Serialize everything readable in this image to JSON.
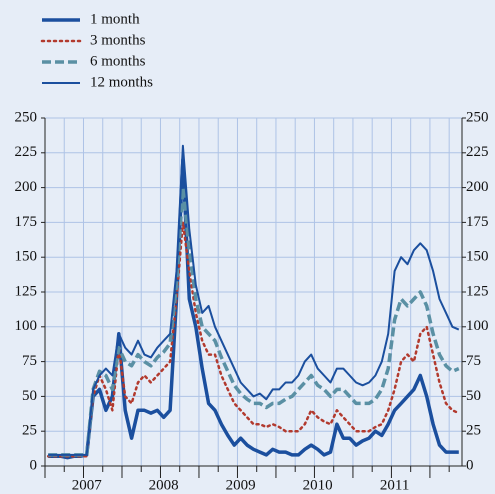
{
  "chart_data": {
    "type": "line",
    "categories": [
      null,
      null,
      null,
      null,
      null,
      null,
      "2007",
      null,
      null,
      null,
      null,
      null,
      null,
      null,
      null,
      null,
      null,
      null,
      "2008",
      null,
      null,
      null,
      null,
      null,
      null,
      null,
      null,
      null,
      null,
      null,
      "2009",
      null,
      null,
      null,
      null,
      null,
      null,
      null,
      null,
      null,
      null,
      null,
      "2010",
      null,
      null,
      null,
      null,
      null,
      null,
      null,
      null,
      null,
      null,
      null,
      "2011",
      null,
      null,
      null,
      null,
      null,
      null,
      null,
      null,
      null,
      null
    ],
    "series": [
      {
        "name": "1 month",
        "color": "#1b4f9e",
        "style": "solid",
        "width": 3.5,
        "values": [
          7,
          7,
          7,
          6,
          7,
          7,
          8,
          50,
          55,
          40,
          50,
          95,
          40,
          20,
          40,
          40,
          38,
          40,
          35,
          40,
          120,
          220,
          120,
          100,
          70,
          45,
          40,
          30,
          22,
          15,
          20,
          15,
          12,
          10,
          8,
          12,
          10,
          10,
          8,
          8,
          12,
          15,
          12,
          8,
          10,
          30,
          20,
          20,
          15,
          18,
          20,
          25,
          22,
          30,
          40,
          45,
          50,
          55,
          65,
          50,
          30,
          15,
          10,
          10,
          10
        ]
      },
      {
        "name": "3 months",
        "color": "#b23a2e",
        "style": "dotted",
        "width": 2.5,
        "values": [
          7,
          7,
          7,
          7,
          7,
          7,
          7,
          50,
          65,
          55,
          40,
          85,
          50,
          45,
          60,
          65,
          60,
          65,
          70,
          75,
          120,
          175,
          140,
          110,
          90,
          80,
          80,
          65,
          55,
          45,
          40,
          35,
          30,
          30,
          28,
          30,
          28,
          25,
          25,
          25,
          30,
          40,
          35,
          32,
          30,
          40,
          35,
          30,
          25,
          25,
          25,
          28,
          30,
          40,
          55,
          75,
          80,
          75,
          95,
          100,
          80,
          60,
          45,
          40,
          38
        ]
      },
      {
        "name": "6 months",
        "color": "#5a90a4",
        "style": "dashed",
        "width": 3.5,
        "values": [
          8,
          8,
          8,
          8,
          8,
          8,
          8,
          55,
          68,
          65,
          55,
          85,
          75,
          72,
          80,
          75,
          72,
          78,
          82,
          88,
          130,
          200,
          155,
          120,
          100,
          95,
          90,
          78,
          68,
          58,
          52,
          48,
          45,
          45,
          42,
          45,
          45,
          48,
          50,
          55,
          60,
          65,
          58,
          55,
          50,
          55,
          55,
          50,
          45,
          45,
          45,
          48,
          55,
          70,
          105,
          120,
          115,
          120,
          125,
          115,
          95,
          80,
          72,
          68,
          70
        ]
      },
      {
        "name": "12 months",
        "color": "#1b4f9e",
        "style": "solid",
        "width": 2,
        "values": [
          8,
          8,
          8,
          8,
          8,
          8,
          8,
          55,
          65,
          70,
          65,
          95,
          85,
          80,
          90,
          80,
          78,
          85,
          90,
          95,
          140,
          230,
          170,
          130,
          110,
          115,
          100,
          90,
          80,
          70,
          60,
          55,
          50,
          52,
          48,
          55,
          55,
          60,
          60,
          65,
          75,
          80,
          70,
          65,
          60,
          70,
          70,
          65,
          60,
          58,
          60,
          65,
          75,
          95,
          140,
          150,
          145,
          155,
          160,
          155,
          140,
          120,
          110,
          100,
          98
        ]
      }
    ],
    "ylim": [
      0,
      250
    ],
    "yticks": [
      0,
      25,
      50,
      75,
      100,
      125,
      150,
      175,
      200,
      225,
      250
    ],
    "y2lim": [
      0,
      250
    ],
    "y2ticks": [
      0,
      25,
      50,
      75,
      100,
      125,
      150,
      175,
      200,
      225,
      250
    ],
    "grid": true
  }
}
